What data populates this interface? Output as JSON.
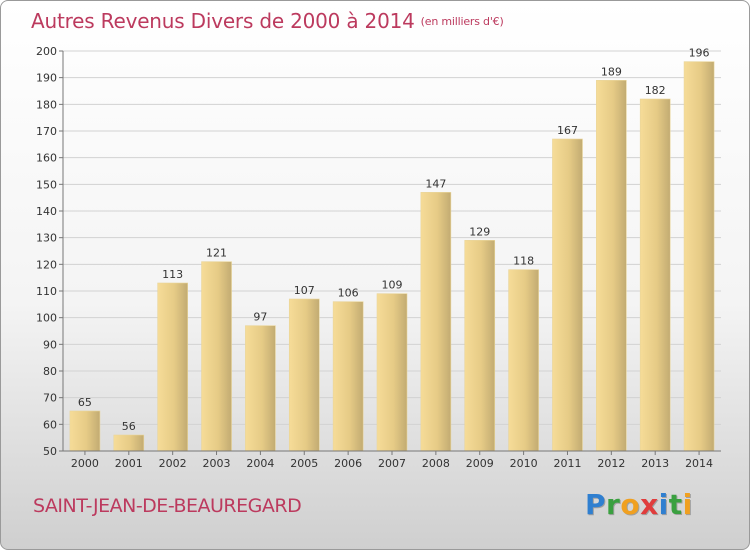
{
  "title": "Autres Revenus Divers de 2000 à 2014",
  "subtitle": "(en milliers d'€)",
  "location": "SAINT-JEAN-DE-BEAUREGARD",
  "logo": {
    "text": "Proxiti",
    "letters": [
      "P",
      "r",
      "o",
      "x",
      "i",
      "t",
      "i"
    ],
    "colors": [
      "#2f7fd0",
      "#3aa040",
      "#f0a020",
      "#e03c3c",
      "#2f7fd0",
      "#3aa040",
      "#f0a020"
    ]
  },
  "colors": {
    "title": "#bc3a5e",
    "bar_light": "#f6dc98",
    "bar_dark": "#c2ab72",
    "grid": "#cfcfcf",
    "axis": "#666666"
  },
  "chart_data": {
    "type": "bar",
    "categories": [
      "2000",
      "2001",
      "2002",
      "2003",
      "2004",
      "2005",
      "2006",
      "2007",
      "2008",
      "2009",
      "2010",
      "2011",
      "2012",
      "2013",
      "2014"
    ],
    "values": [
      65,
      56,
      113,
      121,
      97,
      107,
      106,
      109,
      147,
      129,
      118,
      167,
      189,
      182,
      196
    ],
    "data_labels": [
      "65",
      "56",
      "113",
      "121",
      "97",
      "107",
      "106",
      "109",
      "147",
      "129",
      "118",
      "167",
      "189",
      "182",
      "196"
    ],
    "yticks": [
      "50",
      "60",
      "70",
      "80",
      "90",
      "100",
      "110",
      "120",
      "130",
      "140",
      "150",
      "160",
      "170",
      "180",
      "190",
      "200"
    ],
    "ylim": [
      50,
      200
    ],
    "grid": true,
    "xlabel": "",
    "ylabel": ""
  }
}
